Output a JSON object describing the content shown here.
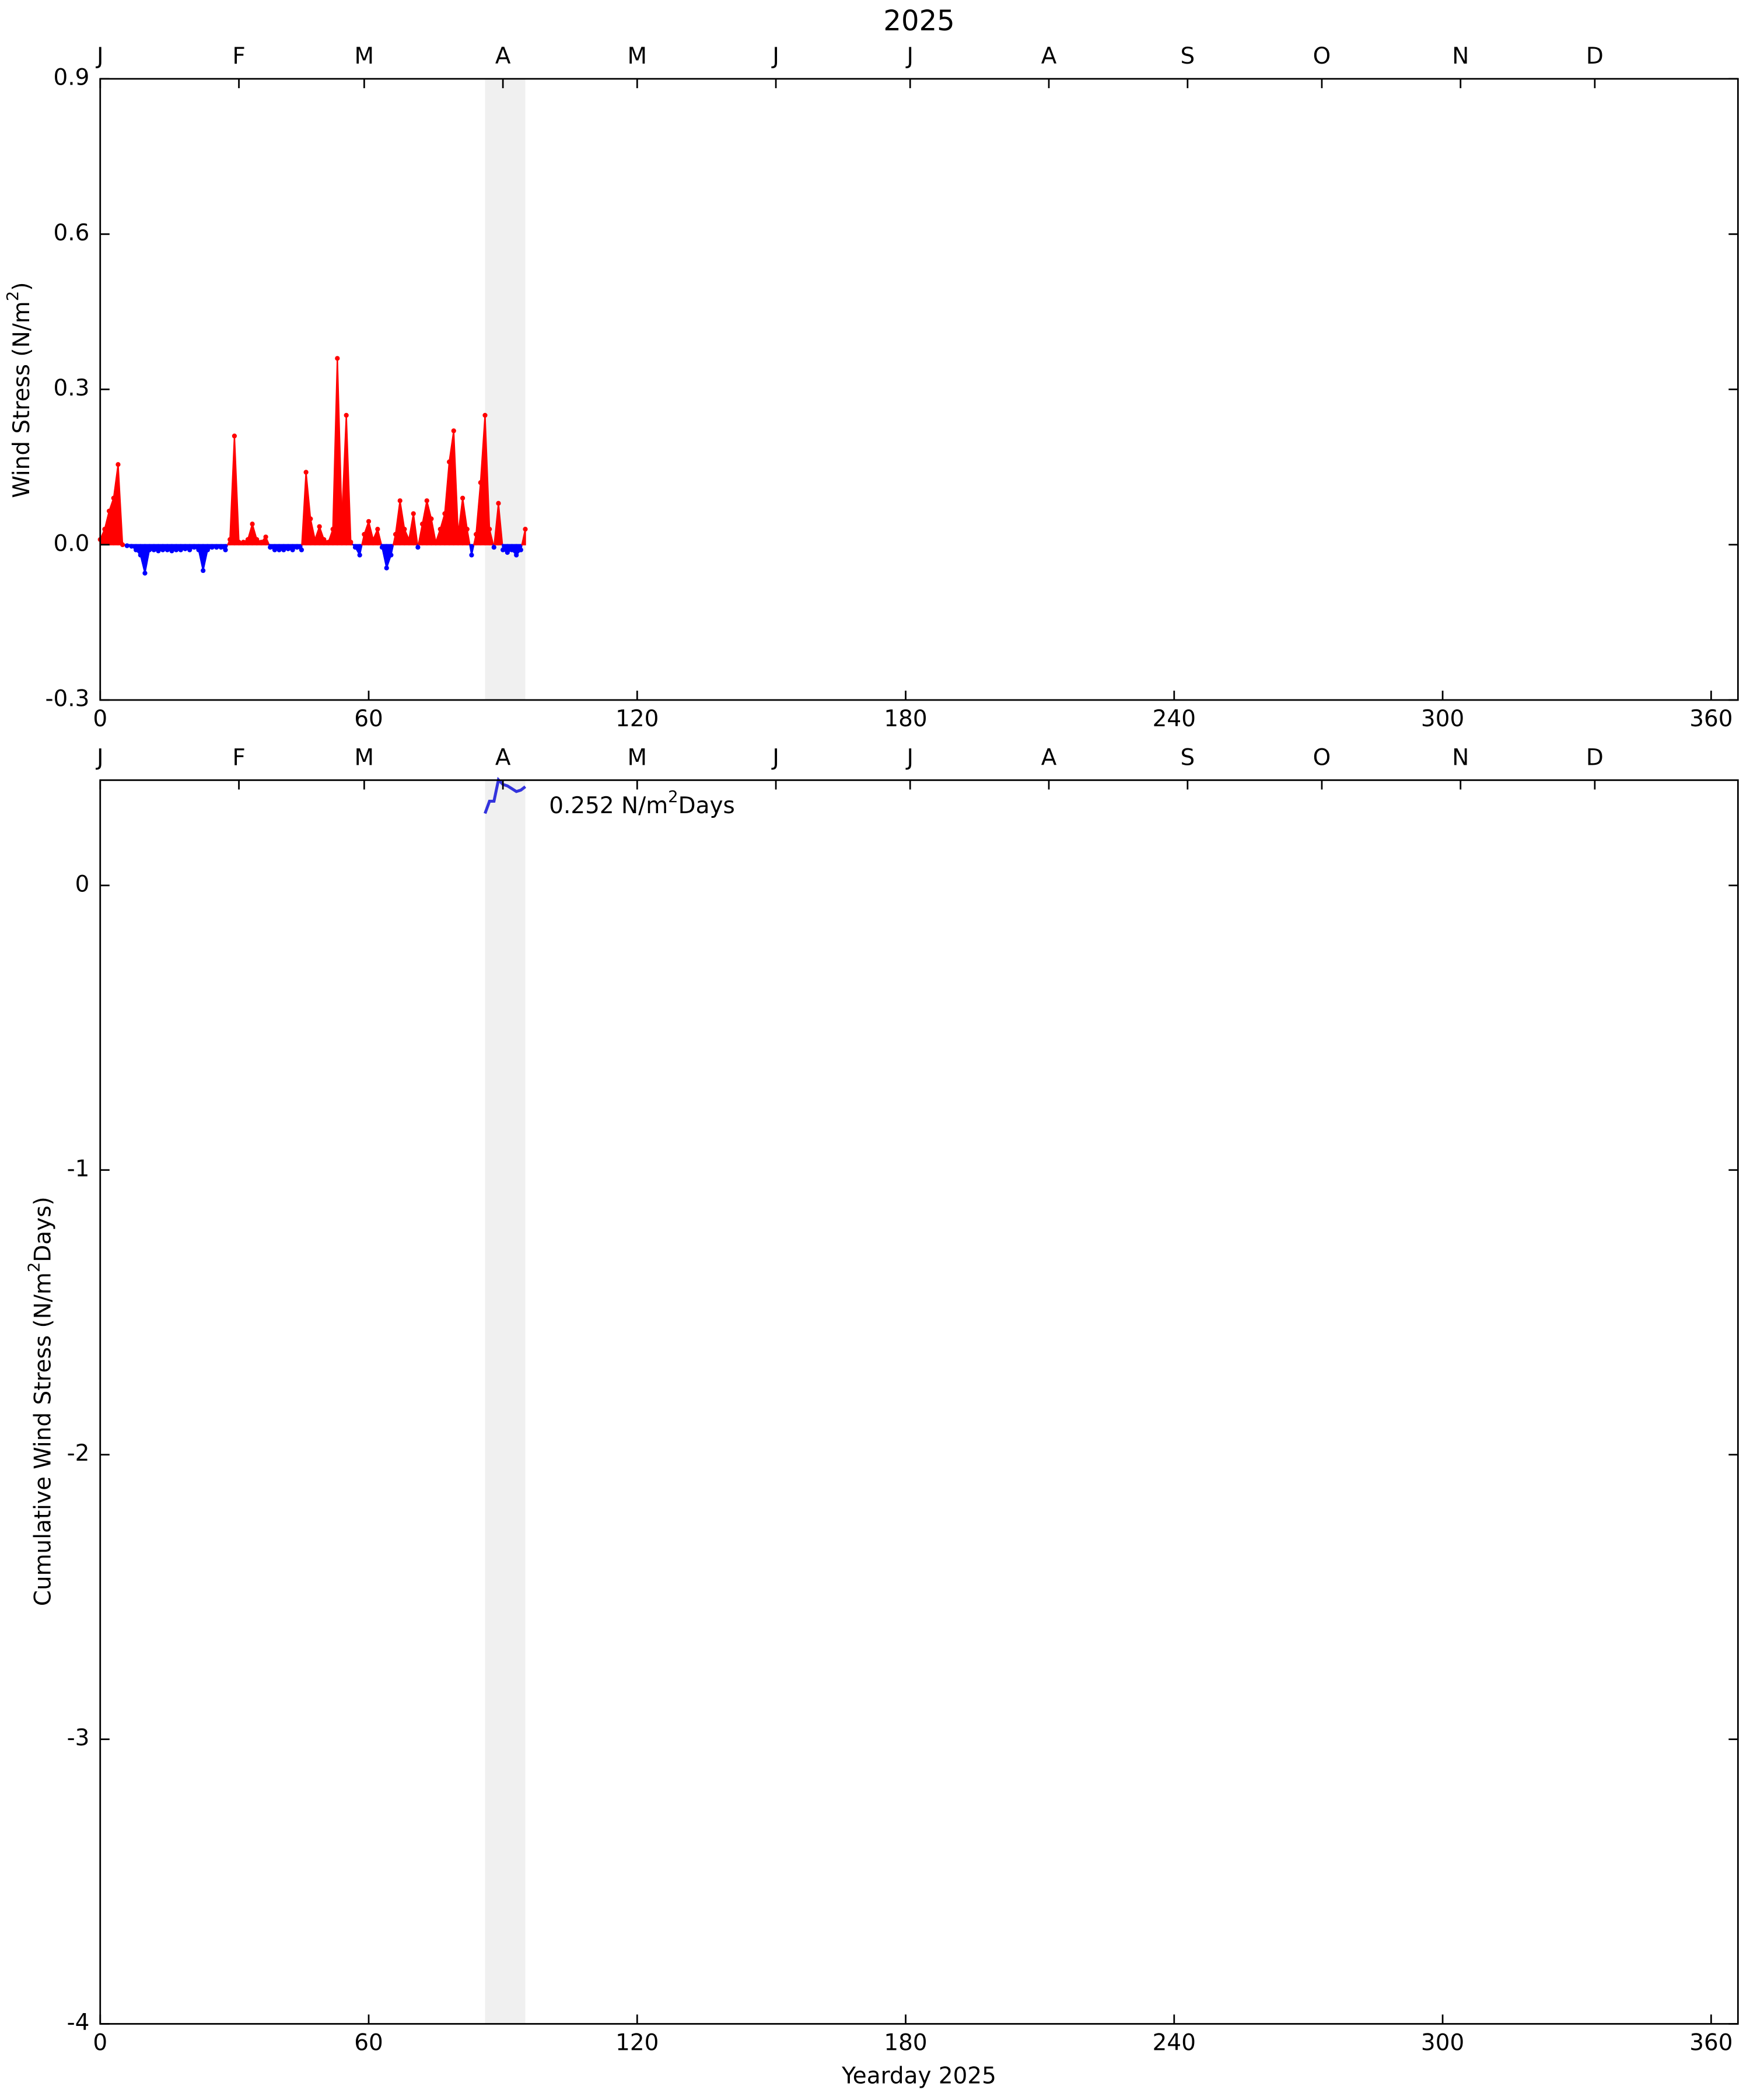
{
  "chart_data": [
    {
      "type": "area",
      "title": "2025",
      "ylabel": [
        "Wind Stress (N/m",
        "2",
        ")"
      ],
      "x": [
        0,
        1,
        2,
        3,
        4,
        5,
        6,
        7,
        8,
        9,
        10,
        11,
        12,
        13,
        14,
        15,
        16,
        17,
        18,
        19,
        20,
        21,
        22,
        23,
        24,
        25,
        26,
        27,
        28,
        29,
        30,
        31,
        32,
        33,
        34,
        35,
        36,
        37,
        38,
        39,
        40,
        41,
        42,
        43,
        44,
        45,
        46,
        47,
        48,
        49,
        50,
        51,
        52,
        53,
        54,
        55,
        56,
        57,
        58,
        59,
        60,
        61,
        62,
        63,
        64,
        65,
        66,
        67,
        68,
        69,
        70,
        71,
        72,
        73,
        74,
        75,
        76,
        77,
        78,
        79,
        80,
        81,
        82,
        83,
        84,
        85,
        86,
        87,
        88,
        89,
        90,
        91,
        92,
        93,
        94,
        95
      ],
      "values": [
        0.01,
        0.03,
        0.065,
        0.09,
        0.155,
        0.0,
        -0.002,
        -0.003,
        -0.01,
        -0.02,
        -0.055,
        -0.01,
        -0.01,
        -0.012,
        -0.01,
        -0.01,
        -0.012,
        -0.01,
        -0.01,
        -0.008,
        -0.01,
        -0.005,
        -0.01,
        -0.05,
        -0.01,
        -0.005,
        -0.005,
        -0.005,
        -0.01,
        0.01,
        0.21,
        0.005,
        0.005,
        0.01,
        0.04,
        0.01,
        0.005,
        0.015,
        -0.005,
        -0.01,
        -0.01,
        -0.01,
        -0.008,
        -0.01,
        -0.005,
        -0.01,
        0.14,
        0.05,
        0.01,
        0.035,
        0.01,
        0.005,
        0.03,
        0.36,
        0.05,
        0.25,
        0.005,
        -0.005,
        -0.02,
        0.02,
        0.045,
        0.01,
        0.03,
        -0.005,
        -0.045,
        -0.02,
        0.02,
        0.085,
        0.03,
        0.01,
        0.06,
        -0.005,
        0.04,
        0.085,
        0.05,
        0.005,
        0.03,
        0.06,
        0.16,
        0.22,
        0.02,
        0.09,
        0.03,
        -0.02,
        0.02,
        0.12,
        0.25,
        0.03,
        -0.005,
        0.08,
        -0.01,
        -0.015,
        -0.01,
        -0.02,
        -0.01,
        0.03
      ],
      "positive_color": "#ff0000",
      "negative_color": "#0000ff",
      "highlight_x": [
        86,
        95
      ],
      "highlight_color": "#f0f0f0",
      "xlim": [
        0,
        366
      ],
      "xticks": [
        0,
        60,
        120,
        180,
        240,
        300,
        360
      ],
      "top_xticks": [
        {
          "value": 0,
          "label": "J"
        },
        {
          "value": 31,
          "label": "F"
        },
        {
          "value": 59,
          "label": "M"
        },
        {
          "value": 90,
          "label": "A"
        },
        {
          "value": 120,
          "label": "M"
        },
        {
          "value": 151,
          "label": "J"
        },
        {
          "value": 181,
          "label": "J"
        },
        {
          "value": 212,
          "label": "A"
        },
        {
          "value": 243,
          "label": "S"
        },
        {
          "value": 273,
          "label": "O"
        },
        {
          "value": 304,
          "label": "N"
        },
        {
          "value": 334,
          "label": "D"
        }
      ],
      "ylim": [
        -0.3,
        0.9
      ],
      "yticks": [
        -0.3,
        {
          "value": 0,
          "label": "0.0"
        },
        0.3,
        0.6,
        0.9
      ]
    },
    {
      "type": "line",
      "ylabel": [
        "Cumulative Wind Stress (N/m",
        "2",
        "Days)"
      ],
      "xlabel": "Yearday 2025",
      "annotation": [
        "0.252 N/m",
        "2",
        "Days"
      ],
      "x": [
        86,
        87,
        88,
        89,
        90,
        91,
        92,
        93,
        94,
        95
      ],
      "values": [
        0.253,
        0.296,
        0.296,
        0.371,
        0.355,
        0.35,
        0.34,
        0.33,
        0.335,
        0.347
      ],
      "color": "#3333dd",
      "highlight_x": [
        86,
        95
      ],
      "highlight_color": "#f0f0f0",
      "xlim": [
        0,
        366
      ],
      "xticks": [
        0,
        60,
        120,
        180,
        240,
        300,
        360
      ],
      "top_xticks": [
        {
          "value": 0,
          "label": "J"
        },
        {
          "value": 31,
          "label": "F"
        },
        {
          "value": 59,
          "label": "M"
        },
        {
          "value": 90,
          "label": "A"
        },
        {
          "value": 120,
          "label": "M"
        },
        {
          "value": 151,
          "label": "J"
        },
        {
          "value": 181,
          "label": "J"
        },
        {
          "value": 212,
          "label": "A"
        },
        {
          "value": 243,
          "label": "S"
        },
        {
          "value": 273,
          "label": "O"
        },
        {
          "value": 304,
          "label": "N"
        },
        {
          "value": 334,
          "label": "D"
        }
      ],
      "ylim": [
        -4,
        0.37
      ],
      "yticks": [
        -4,
        -3,
        -2,
        -1,
        0
      ]
    }
  ]
}
